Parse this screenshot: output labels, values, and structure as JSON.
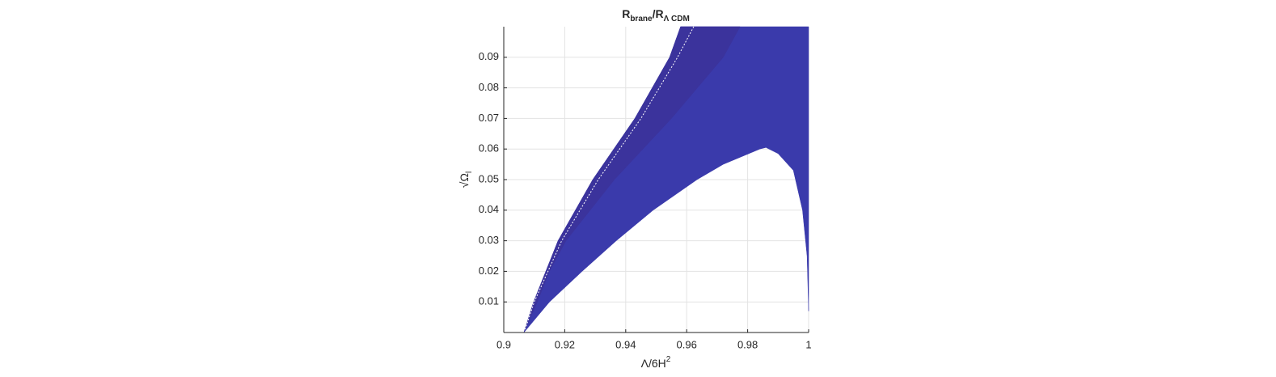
{
  "chart_data": {
    "type": "area",
    "title_parts": [
      {
        "text": "R"
      },
      {
        "text": "brane",
        "sub": true
      },
      {
        "text": "/R"
      },
      {
        "text": "Λ CDM",
        "sub": true
      }
    ],
    "xlabel_parts": [
      {
        "text": "Λ/6H"
      },
      {
        "text": "2",
        "sup": true
      }
    ],
    "ylabel_parts": [
      {
        "text": "√Ω"
      },
      {
        "text": "l",
        "sub": true
      }
    ],
    "xlim": [
      0.9,
      1
    ],
    "ylim": [
      0,
      0.1
    ],
    "xticks": [
      0.9,
      0.92,
      0.94,
      0.96,
      0.98,
      1
    ],
    "yticks": [
      0.01,
      0.02,
      0.03,
      0.04,
      0.05,
      0.06,
      0.07,
      0.08,
      0.09
    ],
    "grid": true,
    "regions": [
      {
        "color": "#3a3aab",
        "x": [
          0.9066,
          0.9098,
          0.9178,
          0.9292,
          0.943,
          0.9544,
          0.958,
          1,
          1,
          0.9995,
          0.998,
          0.995,
          0.99,
          0.986,
          0.984,
          0.972,
          0.9634,
          0.949,
          0.9369,
          0.9257,
          0.915,
          0.9066
        ],
        "y": [
          0,
          0.01,
          0.03,
          0.05,
          0.07,
          0.09,
          0.1,
          0.1,
          0.007,
          0.025,
          0.04,
          0.053,
          0.0585,
          0.0605,
          0.06,
          0.055,
          0.05,
          0.04,
          0.03,
          0.02,
          0.01,
          0
        ]
      },
      {
        "color": "#3b339c",
        "x": [
          0.9066,
          0.9098,
          0.9178,
          0.9292,
          0.943,
          0.9544,
          0.958,
          0.9775,
          0.972,
          0.955,
          0.9363,
          0.9204,
          0.915,
          0.911,
          0.9066
        ],
        "y": [
          0,
          0.01,
          0.03,
          0.05,
          0.07,
          0.09,
          0.1,
          0.1,
          0.09,
          0.07,
          0.05,
          0.03,
          0.02,
          0.01,
          0
        ]
      }
    ],
    "lines": [
      {
        "color": "#ffffff",
        "x": [
          0.907,
          0.91,
          0.919,
          0.931,
          0.945,
          0.957,
          0.9623
        ],
        "y": [
          0.001,
          0.01,
          0.03,
          0.05,
          0.07,
          0.09,
          0.1
        ]
      }
    ]
  }
}
